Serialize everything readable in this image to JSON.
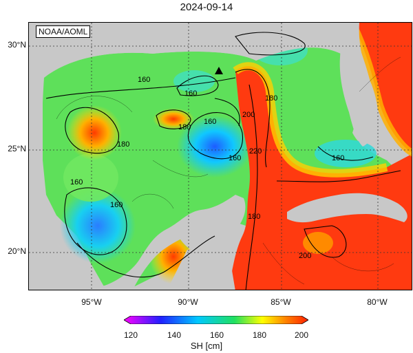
{
  "title": "2024-09-14",
  "badge": "NOAA/AOML",
  "lat_labels": [
    "30°N",
    "25°N",
    "20°N"
  ],
  "lon_labels": [
    "95°W",
    "90°W",
    "85°W",
    "80°W"
  ],
  "colorbar": {
    "ticks": [
      "120",
      "140",
      "160",
      "180",
      "200"
    ],
    "label": "SH [cm]",
    "colors": [
      "#ff00ff",
      "#2020ff",
      "#00c8ff",
      "#20e060",
      "#ffff00",
      "#ff8000",
      "#ff2000"
    ]
  },
  "contour_labels": [
    "160",
    "160",
    "180",
    "180",
    "160",
    "200",
    "180",
    "160",
    "160",
    "160",
    "160",
    "220",
    "180",
    "200"
  ],
  "colors": {
    "land": "#c8c8c8",
    "grid": "#333333"
  }
}
